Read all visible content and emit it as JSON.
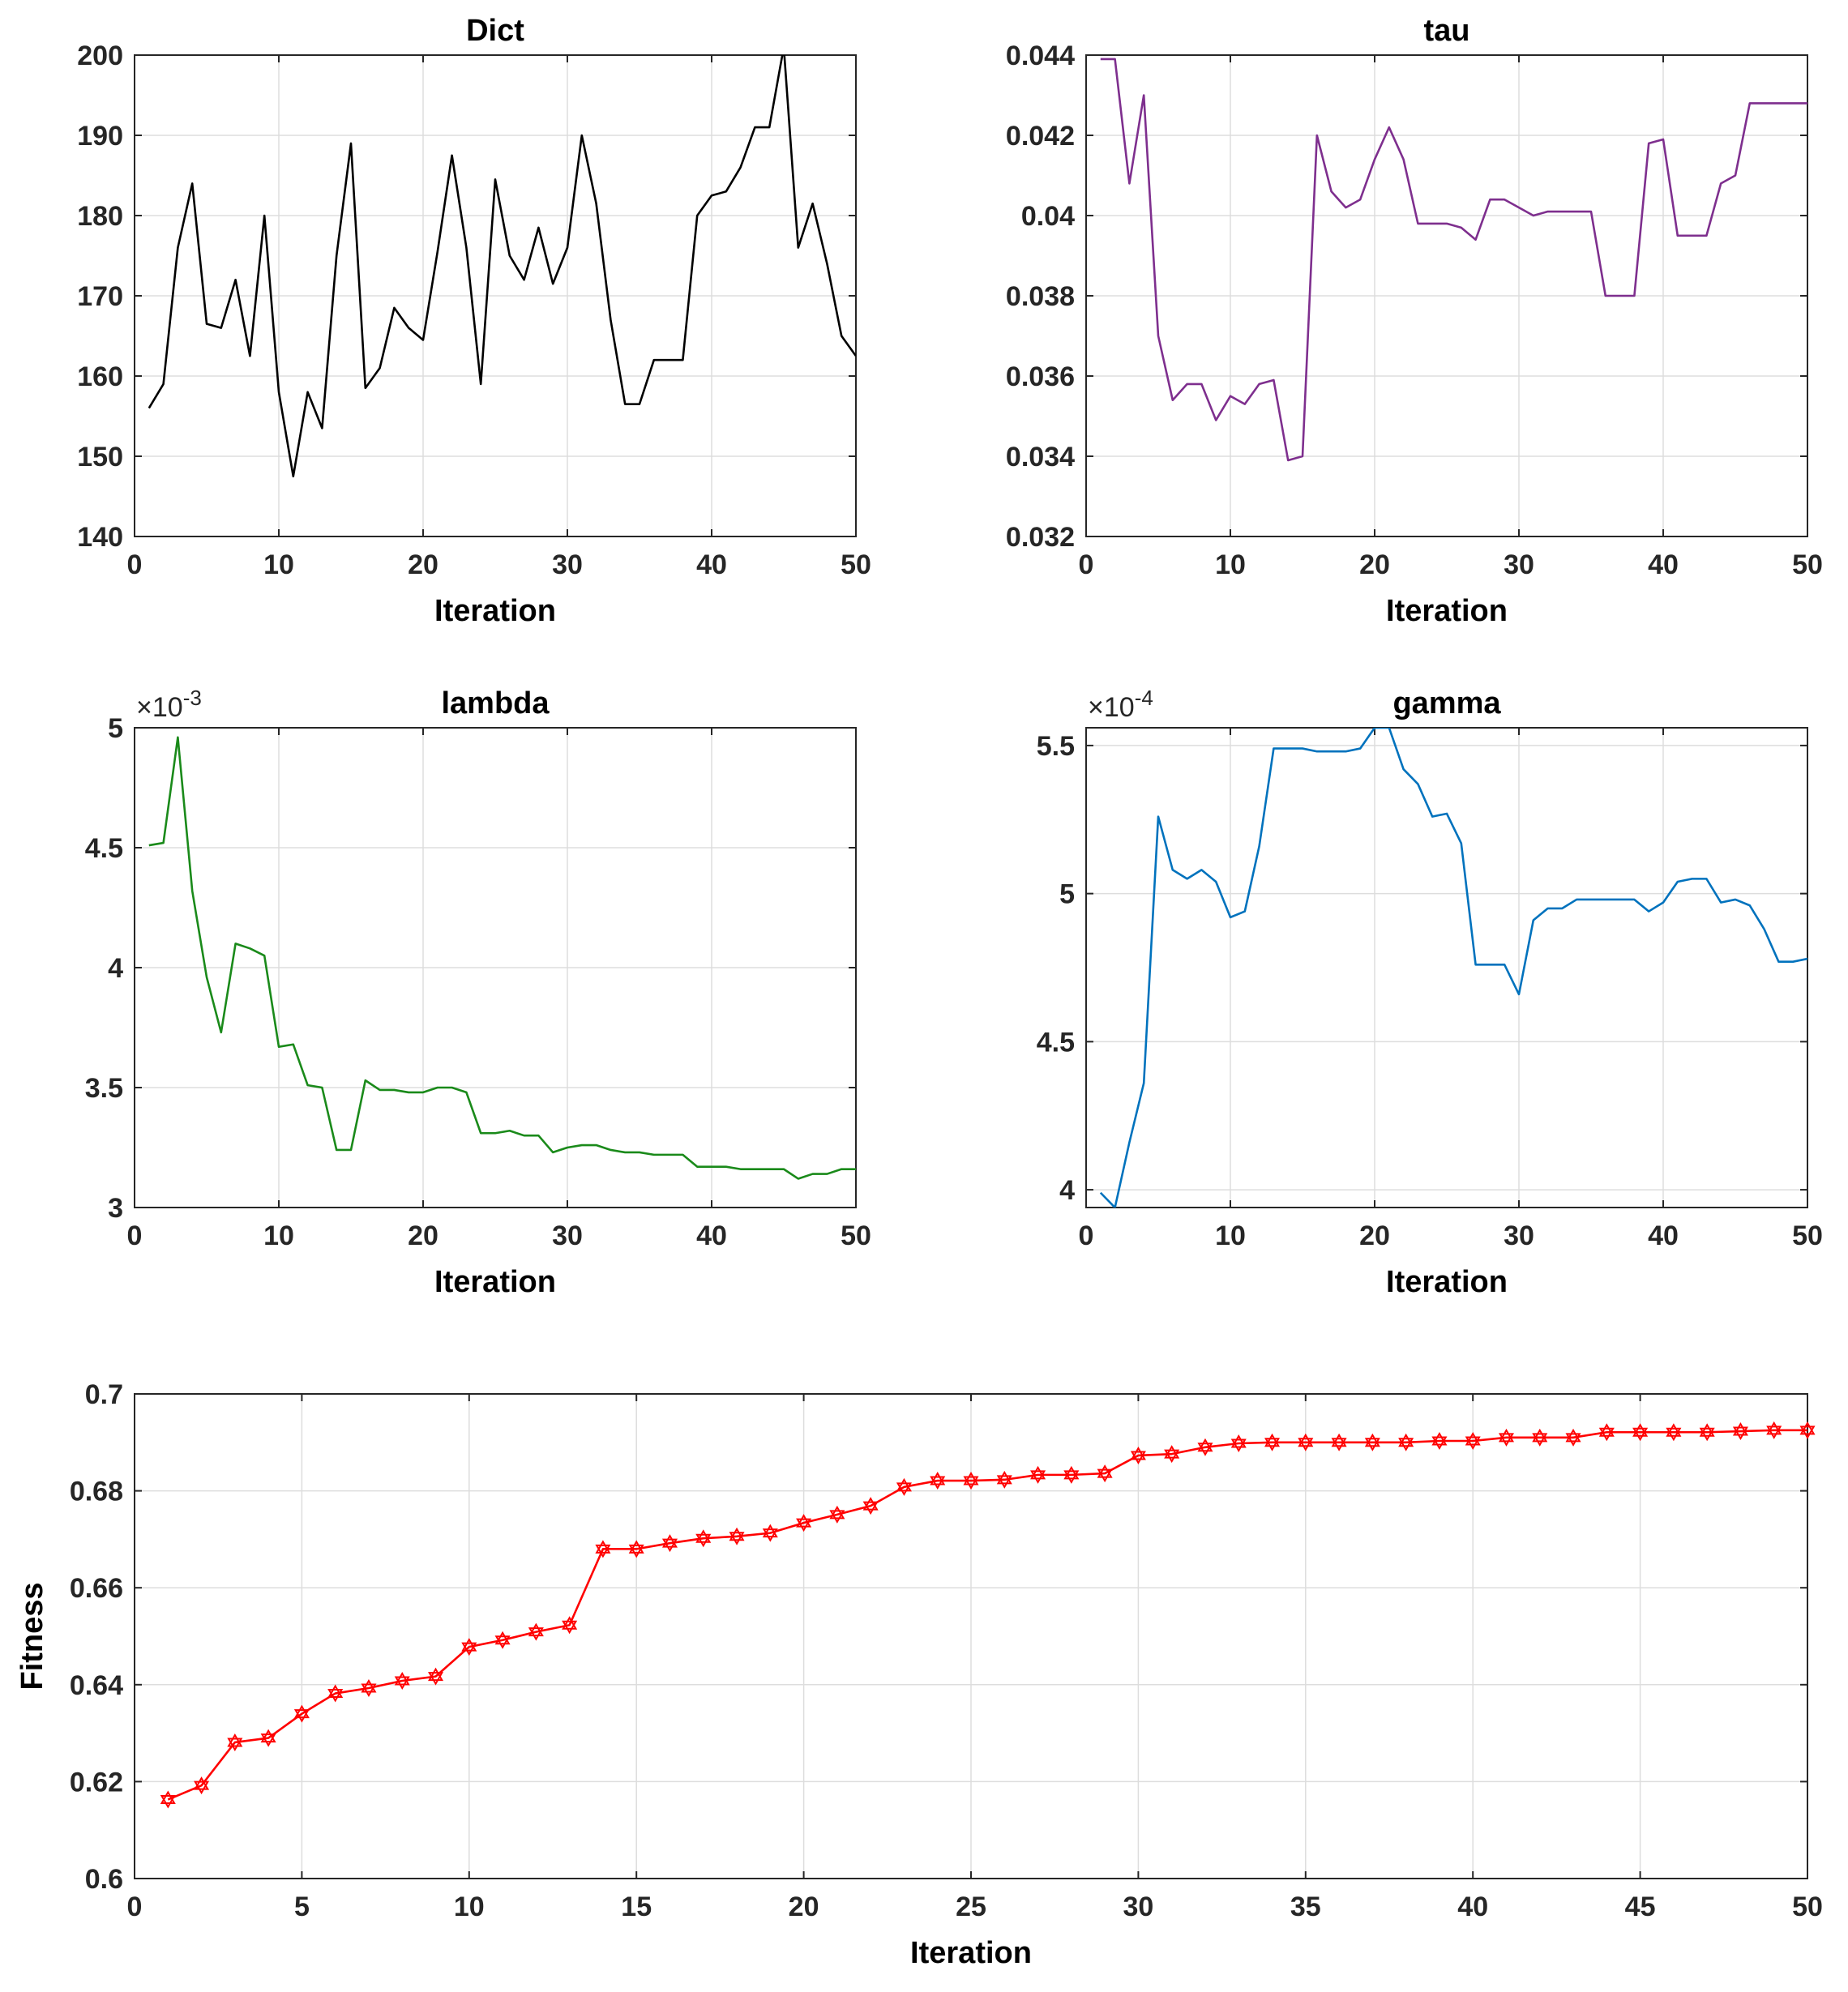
{
  "chart_data": [
    {
      "type": "line",
      "title": "Dict",
      "xlabel": "Iteration",
      "ylabel": "",
      "xlim": [
        0,
        50
      ],
      "ylim": [
        140,
        200
      ],
      "xticks": [
        "0",
        "10",
        "20",
        "30",
        "40",
        "50"
      ],
      "yticks": [
        "140",
        "150",
        "160",
        "170",
        "180",
        "190",
        "200"
      ],
      "grid": true,
      "color": "#000000",
      "x": [
        1,
        2,
        3,
        4,
        5,
        6,
        7,
        8,
        9,
        10,
        11,
        12,
        13,
        14,
        15,
        16,
        17,
        18,
        19,
        20,
        21,
        22,
        23,
        24,
        25,
        26,
        27,
        28,
        29,
        30,
        31,
        32,
        33,
        34,
        35,
        36,
        37,
        38,
        39,
        40,
        41,
        42,
        43,
        44,
        45,
        46,
        47,
        48,
        49,
        50
      ],
      "values": [
        156,
        159,
        176,
        184,
        166.5,
        166,
        172,
        162.5,
        180,
        158,
        147.5,
        158,
        153.5,
        175,
        189,
        158.5,
        161,
        168.5,
        166,
        164.5,
        175.5,
        187.5,
        176,
        159,
        184.5,
        175,
        172,
        178.5,
        171.5,
        176,
        190,
        181.5,
        167,
        156.5,
        156.5,
        162,
        162,
        162,
        180,
        182.5,
        183,
        186,
        191,
        191,
        201,
        176,
        181.5,
        174,
        165,
        162.5
      ]
    },
    {
      "type": "line",
      "title": "tau",
      "xlabel": "Iteration",
      "ylabel": "",
      "xlim": [
        0,
        50
      ],
      "ylim": [
        0.032,
        0.044
      ],
      "xticks": [
        "0",
        "10",
        "20",
        "30",
        "40",
        "50"
      ],
      "yticks": [
        "0.032",
        "0.034",
        "0.036",
        "0.038",
        "0.04",
        "0.042",
        "0.044"
      ],
      "grid": true,
      "color": "#7e2f8e",
      "x": [
        1,
        2,
        3,
        4,
        5,
        6,
        7,
        8,
        9,
        10,
        11,
        12,
        13,
        14,
        15,
        16,
        17,
        18,
        19,
        20,
        21,
        22,
        23,
        24,
        25,
        26,
        27,
        28,
        29,
        30,
        31,
        32,
        33,
        34,
        35,
        36,
        37,
        38,
        39,
        40,
        41,
        42,
        43,
        44,
        45,
        46,
        47,
        48,
        49,
        50
      ],
      "values": [
        0.0439,
        0.0439,
        0.0408,
        0.043,
        0.037,
        0.0354,
        0.0358,
        0.0358,
        0.0349,
        0.0355,
        0.0353,
        0.0358,
        0.0359,
        0.0339,
        0.034,
        0.042,
        0.0406,
        0.0402,
        0.0404,
        0.0414,
        0.0422,
        0.0414,
        0.0398,
        0.0398,
        0.0398,
        0.0397,
        0.0394,
        0.0404,
        0.0404,
        0.0402,
        0.04,
        0.0401,
        0.0401,
        0.0401,
        0.0401,
        0.038,
        0.038,
        0.038,
        0.0418,
        0.0419,
        0.0395,
        0.0395,
        0.0395,
        0.0408,
        0.041,
        0.0428,
        0.0428,
        0.0428,
        0.0428,
        0.0428
      ]
    },
    {
      "type": "line",
      "title": "lambda",
      "xlabel": "Iteration",
      "ylabel": "",
      "xlim": [
        0,
        50
      ],
      "ylim": [
        3,
        5
      ],
      "xticks": [
        "0",
        "10",
        "20",
        "30",
        "40",
        "50"
      ],
      "yticks": [
        "3",
        "3.5",
        "4",
        "4.5",
        "5"
      ],
      "multiplier": "×10",
      "multiplier_exp": "-3",
      "grid": true,
      "color": "#1a8a1a",
      "x": [
        1,
        2,
        3,
        4,
        5,
        6,
        7,
        8,
        9,
        10,
        11,
        12,
        13,
        14,
        15,
        16,
        17,
        18,
        19,
        20,
        21,
        22,
        23,
        24,
        25,
        26,
        27,
        28,
        29,
        30,
        31,
        32,
        33,
        34,
        35,
        36,
        37,
        38,
        39,
        40,
        41,
        42,
        43,
        44,
        45,
        46,
        47,
        48,
        49,
        50
      ],
      "values": [
        4.51,
        4.52,
        4.96,
        4.32,
        3.96,
        3.73,
        4.1,
        4.08,
        4.05,
        3.67,
        3.68,
        3.51,
        3.5,
        3.24,
        3.24,
        3.53,
        3.49,
        3.49,
        3.48,
        3.48,
        3.5,
        3.5,
        3.48,
        3.31,
        3.31,
        3.32,
        3.3,
        3.3,
        3.23,
        3.25,
        3.26,
        3.26,
        3.24,
        3.23,
        3.23,
        3.22,
        3.22,
        3.22,
        3.17,
        3.17,
        3.17,
        3.16,
        3.16,
        3.16,
        3.16,
        3.12,
        3.14,
        3.14,
        3.16,
        3.16
      ]
    },
    {
      "type": "line",
      "title": "gamma",
      "xlabel": "Iteration",
      "ylabel": "",
      "xlim": [
        0,
        50
      ],
      "ylim": [
        3.94,
        5.56
      ],
      "xticks": [
        "0",
        "10",
        "20",
        "30",
        "40",
        "50"
      ],
      "yticks": [
        "4",
        "4.5",
        "5",
        "5.5"
      ],
      "ytick_values": [
        4,
        4.5,
        5,
        5.5
      ],
      "multiplier": "×10",
      "multiplier_exp": "-4",
      "grid": true,
      "color": "#0072bd",
      "x": [
        1,
        2,
        3,
        4,
        5,
        6,
        7,
        8,
        9,
        10,
        11,
        12,
        13,
        14,
        15,
        16,
        17,
        18,
        19,
        20,
        21,
        22,
        23,
        24,
        25,
        26,
        27,
        28,
        29,
        30,
        31,
        32,
        33,
        34,
        35,
        36,
        37,
        38,
        39,
        40,
        41,
        42,
        43,
        44,
        45,
        46,
        47,
        48,
        49,
        50
      ],
      "values": [
        3.99,
        3.94,
        4.16,
        4.36,
        5.26,
        5.08,
        5.05,
        5.08,
        5.04,
        4.92,
        4.94,
        5.16,
        5.49,
        5.49,
        5.49,
        5.48,
        5.48,
        5.48,
        5.49,
        5.56,
        5.56,
        5.42,
        5.37,
        5.26,
        5.27,
        5.17,
        4.76,
        4.76,
        4.76,
        4.66,
        4.91,
        4.95,
        4.95,
        4.98,
        4.98,
        4.98,
        4.98,
        4.98,
        4.94,
        4.97,
        5.04,
        5.05,
        5.05,
        4.97,
        4.98,
        4.96,
        4.88,
        4.77,
        4.77,
        4.78
      ]
    },
    {
      "type": "line",
      "title": "",
      "xlabel": "Iteration",
      "ylabel": "Fitness",
      "xlim": [
        0,
        50
      ],
      "ylim": [
        0.6,
        0.7
      ],
      "xticks": [
        "0",
        "5",
        "10",
        "15",
        "20",
        "25",
        "30",
        "35",
        "40",
        "45",
        "50"
      ],
      "yticks": [
        "0.6",
        "0.62",
        "0.64",
        "0.66",
        "0.68",
        "0.7"
      ],
      "grid": true,
      "color": "#ff0000",
      "marker": "hexagram",
      "x": [
        1,
        2,
        3,
        4,
        5,
        6,
        7,
        8,
        9,
        10,
        11,
        12,
        13,
        14,
        15,
        16,
        17,
        18,
        19,
        20,
        21,
        22,
        23,
        24,
        25,
        26,
        27,
        28,
        29,
        30,
        31,
        32,
        33,
        34,
        35,
        36,
        37,
        38,
        39,
        40,
        41,
        42,
        43,
        44,
        45,
        46,
        47,
        48,
        49,
        50
      ],
      "values": [
        0.6163,
        0.6192,
        0.6281,
        0.629,
        0.634,
        0.6382,
        0.6393,
        0.6408,
        0.6417,
        0.6478,
        0.6492,
        0.6509,
        0.6523,
        0.668,
        0.668,
        0.6692,
        0.6702,
        0.6706,
        0.6713,
        0.6734,
        0.6751,
        0.6769,
        0.6808,
        0.6821,
        0.6821,
        0.6823,
        0.6833,
        0.6833,
        0.6836,
        0.6873,
        0.6876,
        0.689,
        0.6898,
        0.69,
        0.69,
        0.69,
        0.69,
        0.69,
        0.6903,
        0.6903,
        0.691,
        0.691,
        0.691,
        0.6921,
        0.6921,
        0.6921,
        0.6921,
        0.6923,
        0.6925,
        0.6925
      ]
    }
  ]
}
